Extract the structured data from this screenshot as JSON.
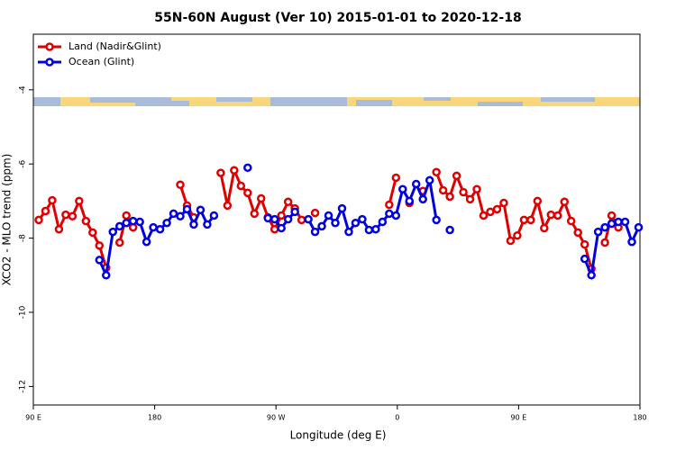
{
  "chart_data": {
    "type": "line",
    "title": "55N-60N August (Ver 10)   2015-01-01 to 2020-12-18",
    "xlabel": "Longitude (deg E)",
    "ylabel": "XCO2 - MLO trend (ppm)",
    "x": [
      94,
      99,
      104,
      109,
      114,
      119,
      124,
      129,
      134,
      139,
      144,
      149,
      154,
      159,
      164,
      169,
      174,
      179,
      184,
      189,
      194,
      199,
      204,
      209,
      214,
      219,
      224,
      229,
      234,
      239,
      244,
      249,
      254,
      259,
      264,
      269,
      274,
      279,
      284,
      289,
      294,
      299,
      304,
      309,
      314,
      319,
      324,
      329,
      334,
      339,
      344,
      349,
      354,
      359,
      364,
      369,
      374,
      379,
      384,
      389,
      394,
      399,
      404,
      409,
      414,
      419,
      424,
      429,
      434,
      439,
      444,
      449,
      454,
      459,
      464,
      469,
      474,
      479,
      484,
      489,
      494,
      499,
      504,
      509,
      514,
      519,
      524,
      529,
      534,
      539
    ],
    "xlim": [
      90,
      540
    ],
    "xticks": [
      {
        "value": 90,
        "label": "90 E"
      },
      180,
      {
        "value": 270,
        "label": "90 W"
      },
      {
        "value": 360,
        "label": "0"
      },
      {
        "value": 450,
        "label": "90 E"
      },
      {
        "value": 540,
        "label": "180"
      }
    ],
    "ylim": [
      -12.5,
      -2.5
    ],
    "yticks": [
      -12,
      -10,
      -8,
      -6,
      -4
    ],
    "grid": false,
    "legend": "top-left",
    "series": [
      {
        "name": "Land (Nadir&Glint)",
        "color": "#e00000",
        "values": [
          -7.51,
          -7.27,
          -6.98,
          -7.76,
          -7.37,
          -7.41,
          -7.0,
          -7.54,
          -7.85,
          -8.2,
          -8.8,
          null,
          -8.12,
          -7.39,
          -7.71,
          null,
          null,
          null,
          null,
          null,
          null,
          -6.56,
          -7.12,
          -7.44,
          null,
          null,
          null,
          -6.24,
          -7.12,
          -6.17,
          -6.59,
          -6.78,
          -7.34,
          -6.93,
          -7.44,
          -7.76,
          -7.39,
          -7.02,
          -7.2,
          -7.51,
          null,
          -7.32,
          null,
          null,
          null,
          null,
          null,
          null,
          null,
          null,
          null,
          null,
          -7.1,
          -6.37,
          null,
          -7.05,
          null,
          -6.73,
          null,
          -6.22,
          -6.71,
          -6.88,
          -6.32,
          -6.76,
          -6.95,
          -6.68,
          -7.39,
          -7.29,
          -7.22,
          -7.05,
          -8.07,
          -7.93,
          -7.51,
          -7.51,
          -7.0,
          -7.73,
          -7.37,
          -7.39,
          -7.02,
          -7.54,
          -7.85,
          -8.17,
          -8.83,
          null,
          -8.12,
          -7.39,
          -7.71,
          null,
          null,
          null
        ]
      },
      {
        "name": "Ocean (Glint)",
        "color": "#0000e0",
        "values": [
          null,
          null,
          null,
          null,
          null,
          null,
          null,
          null,
          null,
          -8.59,
          -9.0,
          -7.83,
          -7.68,
          -7.59,
          -7.54,
          -7.56,
          -8.1,
          -7.71,
          -7.76,
          -7.59,
          -7.34,
          -7.41,
          -7.22,
          -7.63,
          -7.24,
          -7.63,
          -7.39,
          null,
          null,
          null,
          null,
          -6.1,
          null,
          null,
          -7.46,
          -7.49,
          -7.73,
          -7.49,
          -7.29,
          null,
          -7.49,
          -7.83,
          -7.68,
          -7.39,
          -7.59,
          -7.2,
          -7.83,
          -7.59,
          -7.49,
          -7.78,
          -7.76,
          -7.56,
          -7.34,
          -7.39,
          -6.68,
          -7.0,
          -6.54,
          -6.95,
          -6.44,
          -7.51,
          null,
          -7.78,
          null,
          null,
          null,
          null,
          null,
          null,
          null,
          null,
          null,
          null,
          null,
          null,
          null,
          null,
          null,
          null,
          null,
          null,
          null,
          -8.56,
          -9.0,
          -7.83,
          -7.71,
          -7.61,
          -7.56,
          -7.56,
          -8.1,
          -7.71
        ]
      }
    ]
  }
}
